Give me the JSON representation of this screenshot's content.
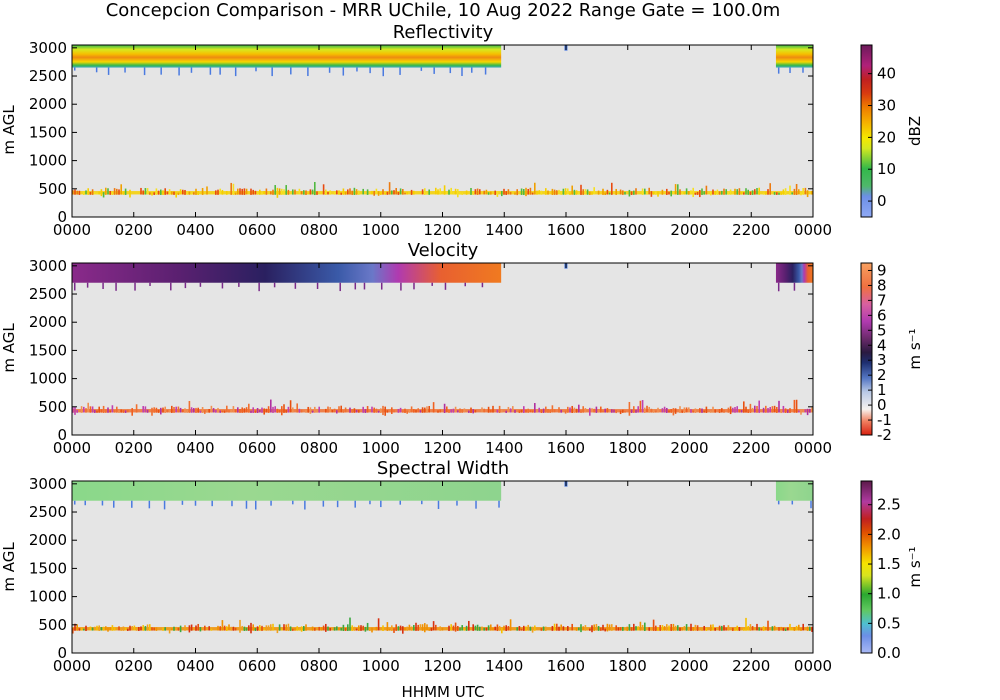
{
  "figure": {
    "suptitle": "Concepcion Comparison - MRR UChile, 10 Aug 2022 Range Gate = 100.0m",
    "xlabel": "HHMM UTC",
    "ylabel": "m AGL"
  },
  "chart_data": [
    {
      "type": "heatmap",
      "title": "Reflectivity",
      "ylabel": "m AGL",
      "xlabel": "HHMM UTC",
      "x_ticks": [
        "0000",
        "0200",
        "0400",
        "0600",
        "0800",
        "1000",
        "1200",
        "1400",
        "1600",
        "1800",
        "2000",
        "2200",
        "0000"
      ],
      "y_ticks": [
        0,
        500,
        1000,
        1500,
        2000,
        2500,
        3000
      ],
      "ylim": [
        0,
        3050
      ],
      "colorbar": {
        "label": "dBZ",
        "ticks": [
          "0",
          "10",
          "20",
          "30",
          "40"
        ],
        "range": [
          -5,
          49
        ]
      },
      "background_color": "#e5e5e5",
      "layers": [
        {
          "name": "upper echo",
          "start_hour": 0,
          "end_hour": 13.9,
          "base_m": 2650,
          "top_m": 3050,
          "core_dBZ": 25
        },
        {
          "name": "upper echo",
          "start_hour": 22.8,
          "end_hour": 24,
          "base_m": 2650,
          "top_m": 3050,
          "core_dBZ": 25
        },
        {
          "name": "low-level echo",
          "start_hour": 0,
          "end_hour": 24,
          "base_m": 330,
          "top_m": 620,
          "core_dBZ": 22
        }
      ]
    },
    {
      "type": "heatmap",
      "title": "Velocity",
      "ylabel": "m AGL",
      "xlabel": "HHMM UTC",
      "x_ticks": [
        "0000",
        "0200",
        "0400",
        "0600",
        "0800",
        "1000",
        "1200",
        "1400",
        "1600",
        "1800",
        "2000",
        "2200",
        "0000"
      ],
      "y_ticks": [
        0,
        500,
        1000,
        1500,
        2000,
        2500,
        3000
      ],
      "ylim": [
        0,
        3050
      ],
      "colorbar": {
        "label": "m s⁻¹",
        "ticks": [
          "-2",
          "-1",
          "0",
          "1",
          "2",
          "3",
          "4",
          "5",
          "6",
          "7",
          "8",
          "9"
        ],
        "range": [
          -2,
          9.5
        ]
      },
      "background_color": "#e5e5e5",
      "layers": [
        {
          "name": "upper echo",
          "start_hour": 0,
          "end_hour": 13.9,
          "base_m": 2700,
          "top_m": 3050
        },
        {
          "name": "upper echo",
          "start_hour": 22.8,
          "end_hour": 24,
          "base_m": 2700,
          "top_m": 3050
        },
        {
          "name": "low-level echo",
          "start_hour": 0,
          "end_hour": 24,
          "base_m": 330,
          "top_m": 620
        }
      ]
    },
    {
      "type": "heatmap",
      "title": "Spectral Width",
      "ylabel": "m AGL",
      "xlabel": "HHMM UTC",
      "x_ticks": [
        "0000",
        "0200",
        "0400",
        "0600",
        "0800",
        "1000",
        "1200",
        "1400",
        "1600",
        "1800",
        "2000",
        "2200",
        "0000"
      ],
      "y_ticks": [
        0,
        500,
        1000,
        1500,
        2000,
        2500,
        3000
      ],
      "ylim": [
        0,
        3050
      ],
      "colorbar": {
        "label": "m s⁻¹",
        "ticks": [
          "0.0",
          "0.5",
          "1.0",
          "1.5",
          "2.0",
          "2.5"
        ],
        "range": [
          0,
          2.9
        ]
      },
      "background_color": "#e5e5e5",
      "layers": [
        {
          "name": "upper echo",
          "start_hour": 0,
          "end_hour": 13.9,
          "base_m": 2700,
          "top_m": 3050
        },
        {
          "name": "upper echo",
          "start_hour": 22.8,
          "end_hour": 24,
          "base_m": 2700,
          "top_m": 3050
        },
        {
          "name": "low-level echo",
          "start_hour": 0,
          "end_hour": 24,
          "base_m": 330,
          "top_m": 620
        }
      ]
    }
  ]
}
